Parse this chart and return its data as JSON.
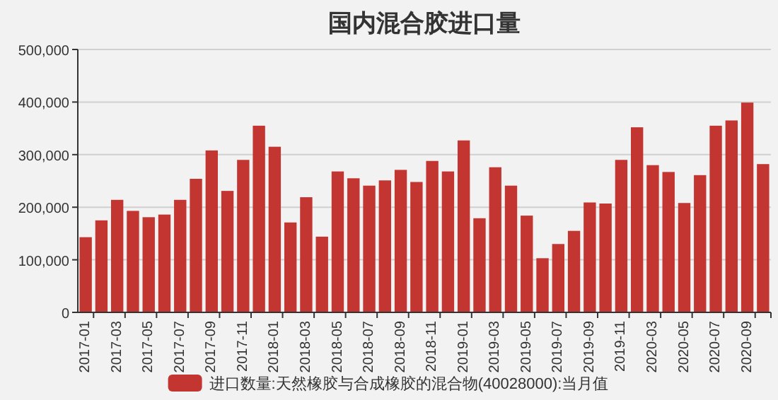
{
  "chart_data": {
    "type": "bar",
    "title": "国内混合胶进口量",
    "categories": [
      "2017-01",
      null,
      "2017-03",
      null,
      "2017-05",
      null,
      "2017-07",
      null,
      "2017-09",
      null,
      "2017-11",
      null,
      "2018-01",
      null,
      "2018-03",
      null,
      "2018-05",
      null,
      "2018-07",
      null,
      "2018-09",
      null,
      "2018-11",
      null,
      "2019-01",
      null,
      "2019-03",
      null,
      "2019-05",
      null,
      "2019-07",
      null,
      "2019-09",
      null,
      "2019-11",
      null,
      "2020-03",
      null,
      "2020-05",
      null,
      "2020-07",
      null,
      "2020-09",
      null
    ],
    "series": [
      {
        "name": "进口数量:天然橡胶与合成橡胶的混合物(40028000):当月值",
        "color": "#c23531",
        "values": [
          143000,
          175000,
          214000,
          193000,
          181000,
          186000,
          214000,
          254000,
          308000,
          231000,
          290000,
          355000,
          315000,
          171000,
          219000,
          144000,
          268000,
          255000,
          241000,
          251000,
          271000,
          248000,
          288000,
          268000,
          327000,
          179000,
          276000,
          241000,
          184000,
          103000,
          130000,
          155000,
          209000,
          207000,
          290000,
          352000,
          280000,
          267000,
          208000,
          261000,
          355000,
          365000,
          399000,
          282000
        ]
      }
    ],
    "ylim": [
      0,
      500000
    ],
    "yticks": [
      {
        "value": 0,
        "label": "0"
      },
      {
        "value": 100000,
        "label": "100,000"
      },
      {
        "value": 200000,
        "label": "200,000"
      },
      {
        "value": 300000,
        "label": "300,000"
      },
      {
        "value": 400000,
        "label": "400,000"
      },
      {
        "value": 500000,
        "label": "500,000"
      }
    ],
    "grid": "y",
    "legend": "bottom"
  }
}
